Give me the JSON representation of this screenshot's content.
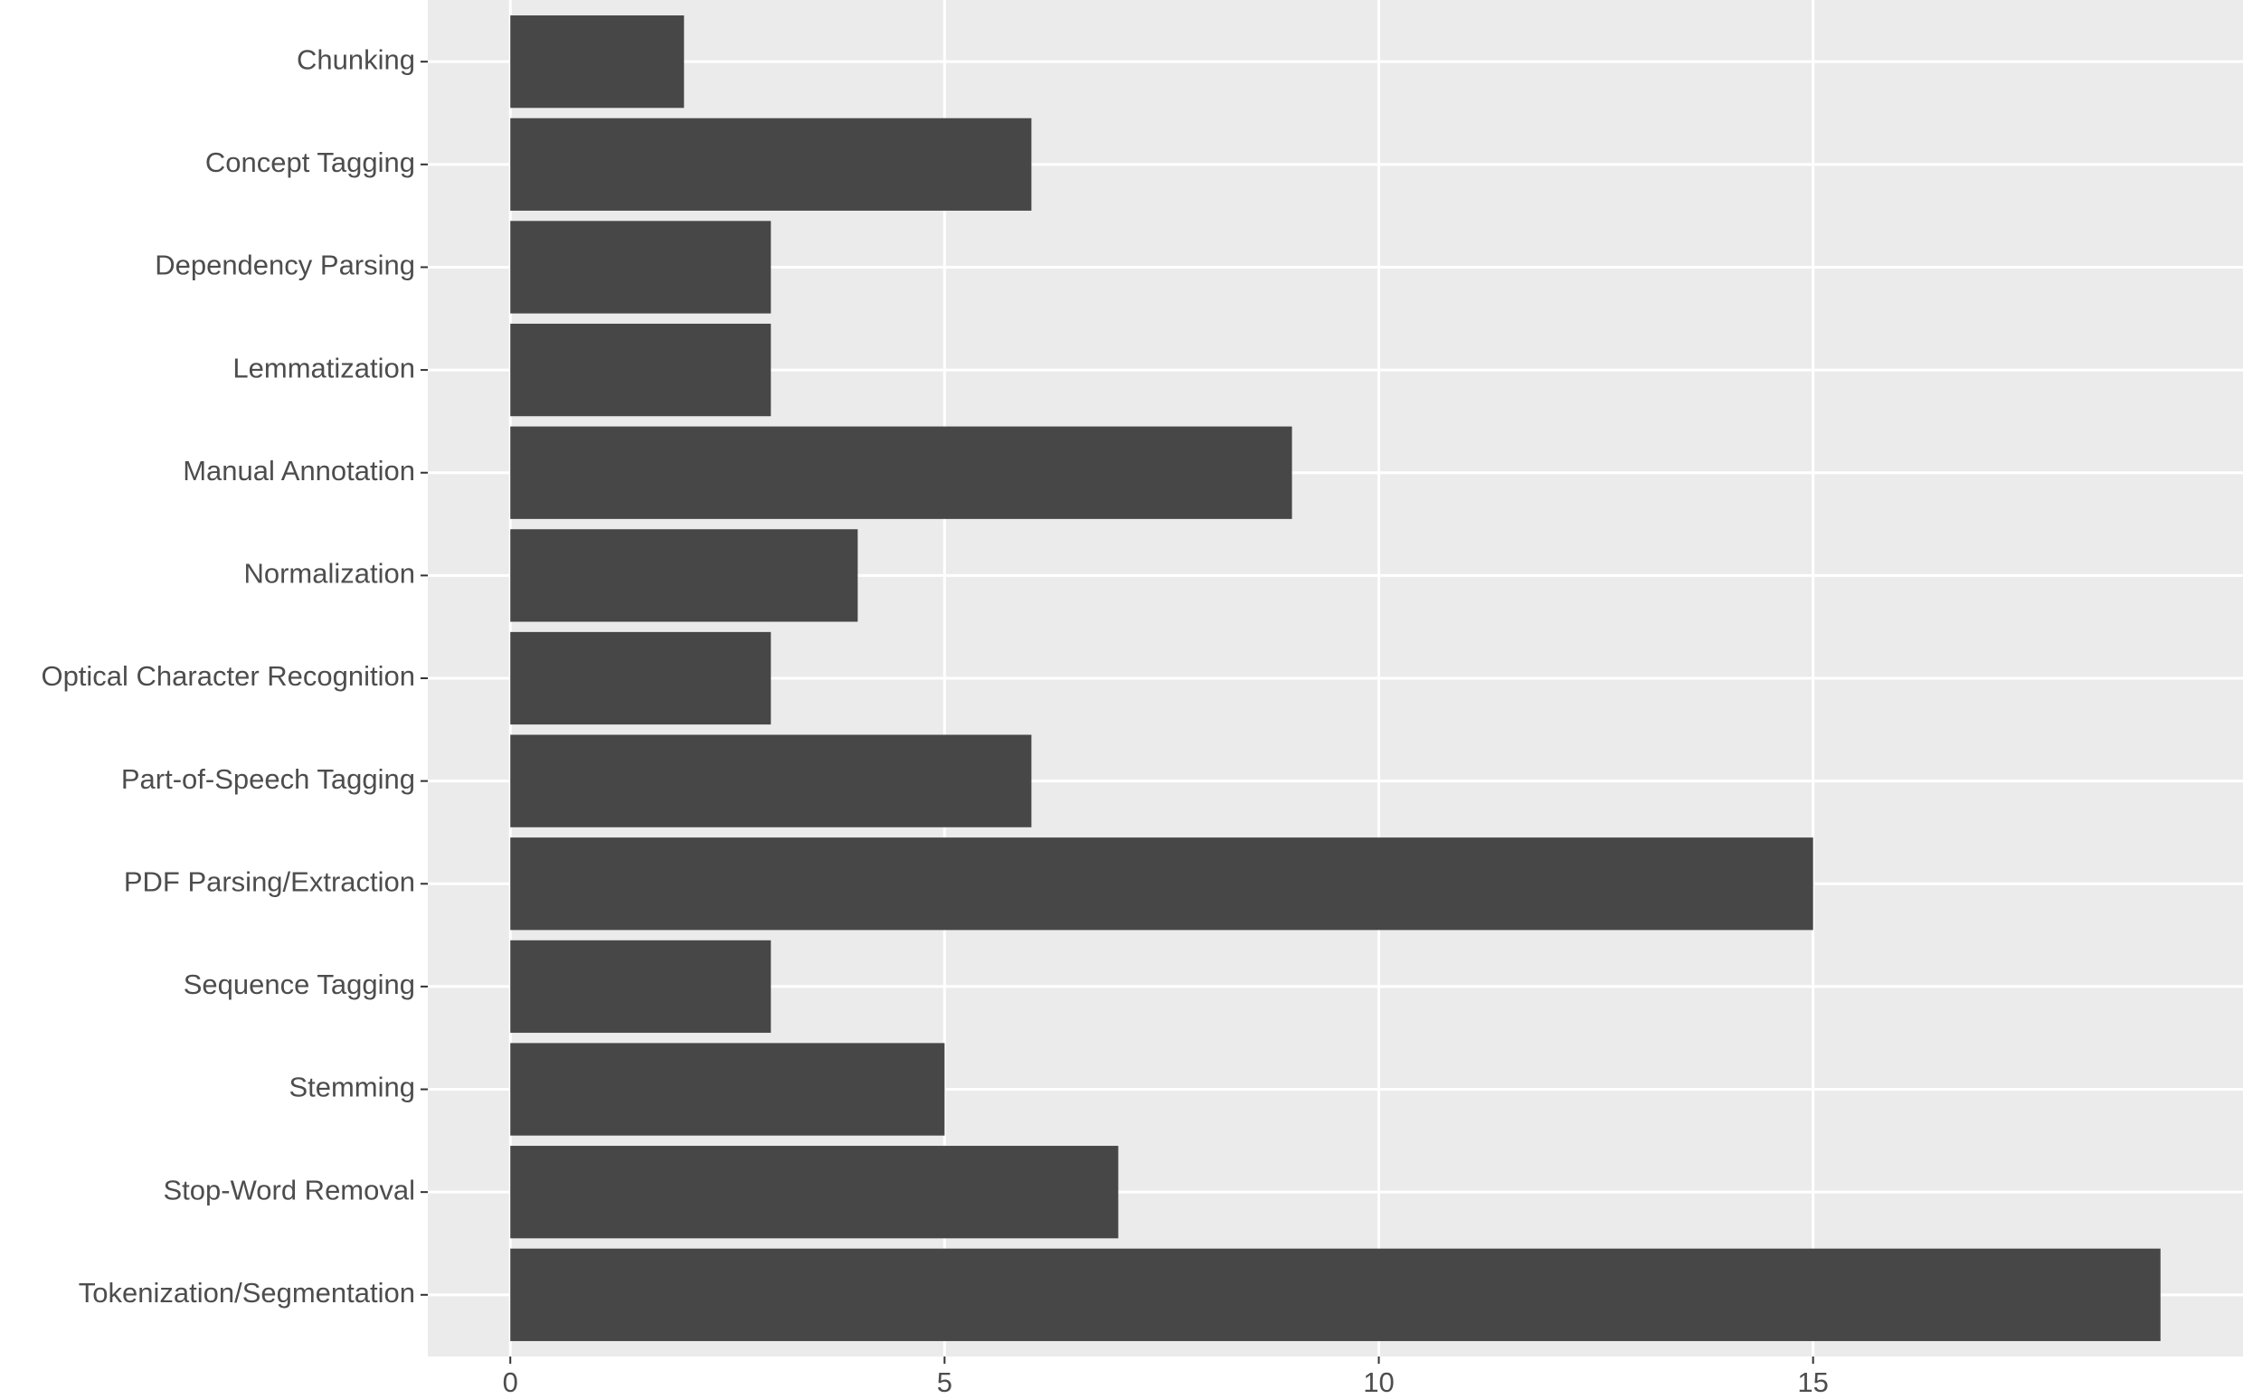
{
  "chart_data": {
    "type": "bar",
    "orientation": "horizontal",
    "categories": [
      "Chunking",
      "Concept Tagging",
      "Dependency Parsing",
      "Lemmatization",
      "Manual Annotation",
      "Normalization",
      "Optical Character Recognition",
      "Part-of-Speech Tagging",
      "PDF Parsing/Extraction",
      "Sequence Tagging",
      "Stemming",
      "Stop-Word Removal",
      "Tokenization/Segmentation"
    ],
    "values": [
      2,
      6,
      3,
      3,
      9,
      4,
      3,
      6,
      15,
      3,
      5,
      7,
      19
    ],
    "color": "#474747",
    "xlim": [
      -0.95,
      19.95
    ],
    "xticks": [
      0,
      5,
      10,
      15
    ],
    "grid": true
  }
}
